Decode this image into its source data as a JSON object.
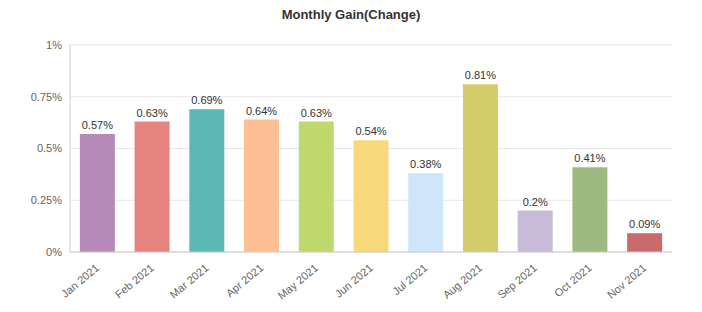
{
  "chart_data": {
    "type": "bar",
    "title": "Monthly Gain(Change)",
    "categories": [
      "Jan 2021",
      "Feb 2021",
      "Mar 2021",
      "Apr 2021",
      "May 2021",
      "Jun 2021",
      "Jul 2021",
      "Aug 2021",
      "Sep 2021",
      "Oct 2021",
      "Nov 2021"
    ],
    "values": [
      0.57,
      0.63,
      0.69,
      0.64,
      0.63,
      0.54,
      0.38,
      0.81,
      0.2,
      0.41,
      0.09
    ],
    "value_labels": [
      "0.57%",
      "0.63%",
      "0.69%",
      "0.64%",
      "0.63%",
      "0.54%",
      "0.38%",
      "0.81%",
      "0.2%",
      "0.41%",
      "0.09%"
    ],
    "colors": [
      "#b589b8",
      "#e5837f",
      "#5bb8b4",
      "#fdbf93",
      "#c0d96f",
      "#f7d87a",
      "#cfe5f9",
      "#d2cc6b",
      "#c8bbd9",
      "#9dba80",
      "#c96a6c"
    ],
    "ylim": [
      0,
      1
    ],
    "yticks": [
      {
        "value": 0,
        "label": "0%"
      },
      {
        "value": 0.25,
        "label": "0.25%"
      },
      {
        "value": 0.5,
        "label": "0.5%"
      },
      {
        "value": 0.75,
        "label": "0.75%"
      },
      {
        "value": 1,
        "label": "1%"
      }
    ],
    "grid": true,
    "data_labels": true
  }
}
